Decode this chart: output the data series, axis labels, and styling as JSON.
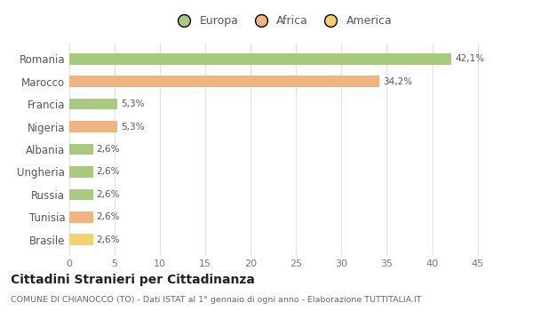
{
  "categories": [
    "Romania",
    "Marocco",
    "Francia",
    "Nigeria",
    "Albania",
    "Ungheria",
    "Russia",
    "Tunisia",
    "Brasile"
  ],
  "values": [
    42.1,
    34.2,
    5.3,
    5.3,
    2.6,
    2.6,
    2.6,
    2.6,
    2.6
  ],
  "labels": [
    "42,1%",
    "34,2%",
    "5,3%",
    "5,3%",
    "2,6%",
    "2,6%",
    "2,6%",
    "2,6%",
    "2,6%"
  ],
  "colors": [
    "#a8c97f",
    "#f0b482",
    "#a8c97f",
    "#f0b482",
    "#a8c97f",
    "#a8c97f",
    "#a8c97f",
    "#f0b482",
    "#f5d06e"
  ],
  "legend_labels": [
    "Europa",
    "Africa",
    "America"
  ],
  "legend_colors": [
    "#a8c97f",
    "#f0b482",
    "#f5d06e"
  ],
  "title": "Cittadini Stranieri per Cittadinanza",
  "subtitle": "COMUNE DI CHIANOCCO (TO) - Dati ISTAT al 1° gennaio di ogni anno - Elaborazione TUTTITALIA.IT",
  "xlim": [
    0,
    47
  ],
  "xticks": [
    0,
    5,
    10,
    15,
    20,
    25,
    30,
    35,
    40,
    45
  ],
  "background_color": "#ffffff",
  "grid_color": "#e0e0e0",
  "bar_height": 0.5
}
